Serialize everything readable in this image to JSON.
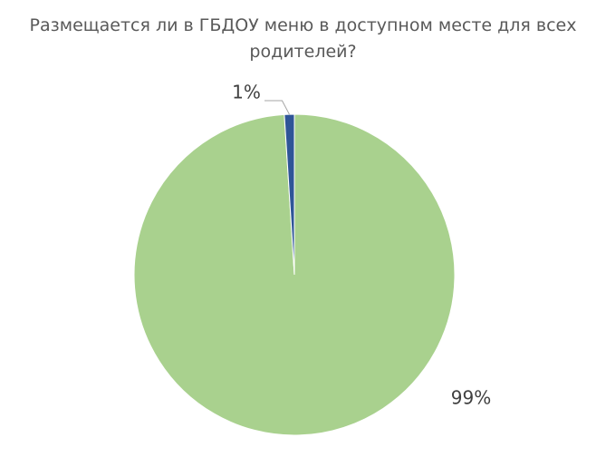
{
  "chart_data": {
    "type": "pie",
    "title": "Размещается ли в ГБДОУ меню в доступном месте для всех родителей?",
    "values": [
      99,
      1
    ],
    "value_labels": [
      "99%",
      "1%"
    ],
    "colors": [
      "#a9d18e",
      "#2f5597"
    ]
  }
}
